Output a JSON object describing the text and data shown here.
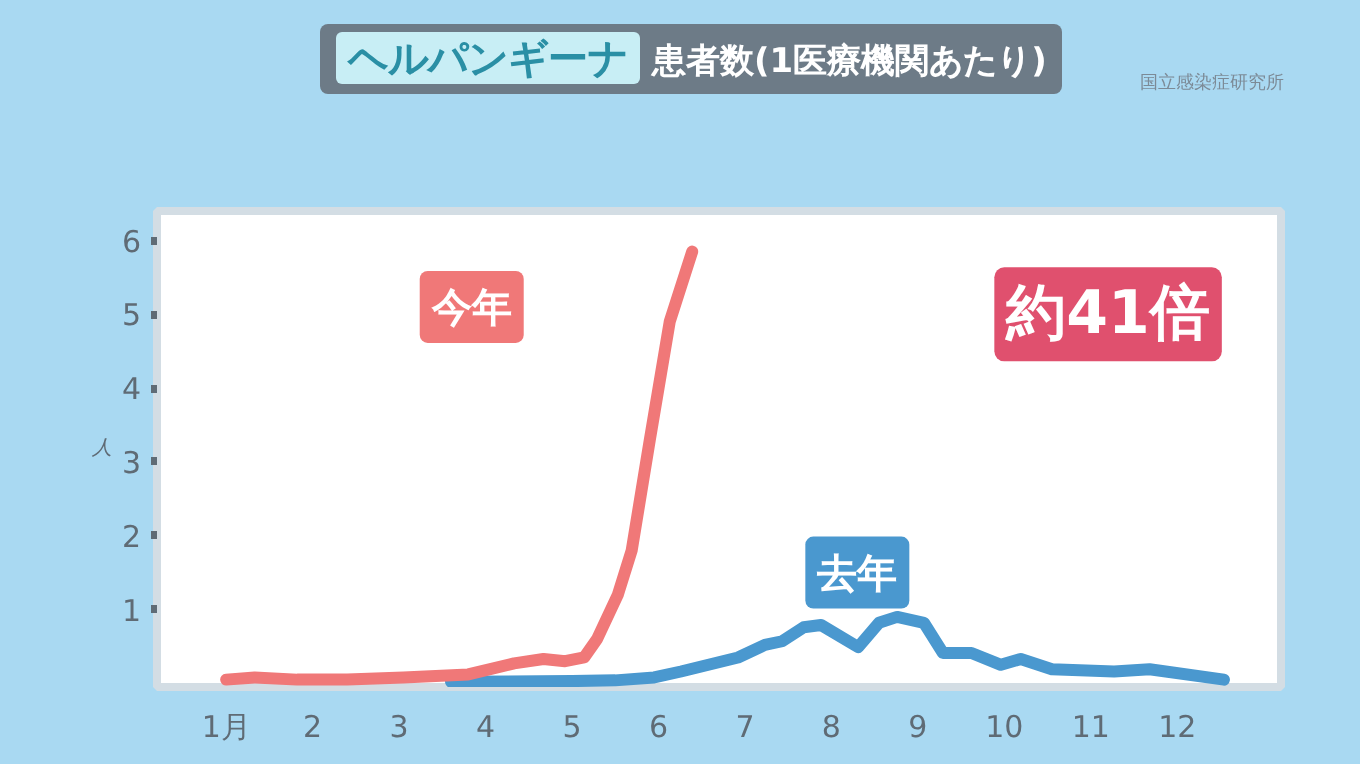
{
  "chart_data": {
    "type": "line",
    "title": "ヘルパンギーナ",
    "subtitle": "患者数(1医療機関あたり)",
    "ylabel": "人",
    "annotations": [
      "国立感染症研究所",
      "約41倍"
    ],
    "xlim": [
      0.2,
      13.2
    ],
    "ylim": [
      -0.05,
      6.4
    ],
    "xticks": [
      {
        "value": 1,
        "label": "1月"
      },
      2,
      3,
      4,
      5,
      6,
      7,
      8,
      9,
      10,
      11,
      12
    ],
    "yticks": [
      1,
      2,
      3,
      4,
      5,
      6
    ],
    "grid": false,
    "series": [
      {
        "name": "去年",
        "color": "#4a98cf",
        "x": [
          3.6,
          5.0,
          5.5,
          5.95,
          6.26,
          6.92,
          7.23,
          7.43,
          7.68,
          7.88,
          8.31,
          8.55,
          8.76,
          9.07,
          9.29,
          9.62,
          9.96,
          10.19,
          10.55,
          11.27,
          11.68,
          12.54
        ],
        "values": [
          0.02,
          0.03,
          0.04,
          0.08,
          0.16,
          0.35,
          0.52,
          0.57,
          0.76,
          0.79,
          0.49,
          0.82,
          0.9,
          0.82,
          0.41,
          0.41,
          0.25,
          0.33,
          0.19,
          0.16,
          0.19,
          0.05
        ]
      },
      {
        "name": "今年",
        "color": "#f07878",
        "x": [
          1.0,
          1.33,
          1.82,
          2.4,
          3.05,
          3.8,
          4.33,
          4.67,
          4.92,
          5.14,
          5.29,
          5.53,
          5.69,
          5.9,
          6.13,
          6.39
        ],
        "values": [
          0.05,
          0.08,
          0.05,
          0.05,
          0.08,
          0.12,
          0.27,
          0.33,
          0.3,
          0.35,
          0.6,
          1.2,
          1.8,
          3.3,
          4.9,
          5.85
        ]
      }
    ]
  }
}
